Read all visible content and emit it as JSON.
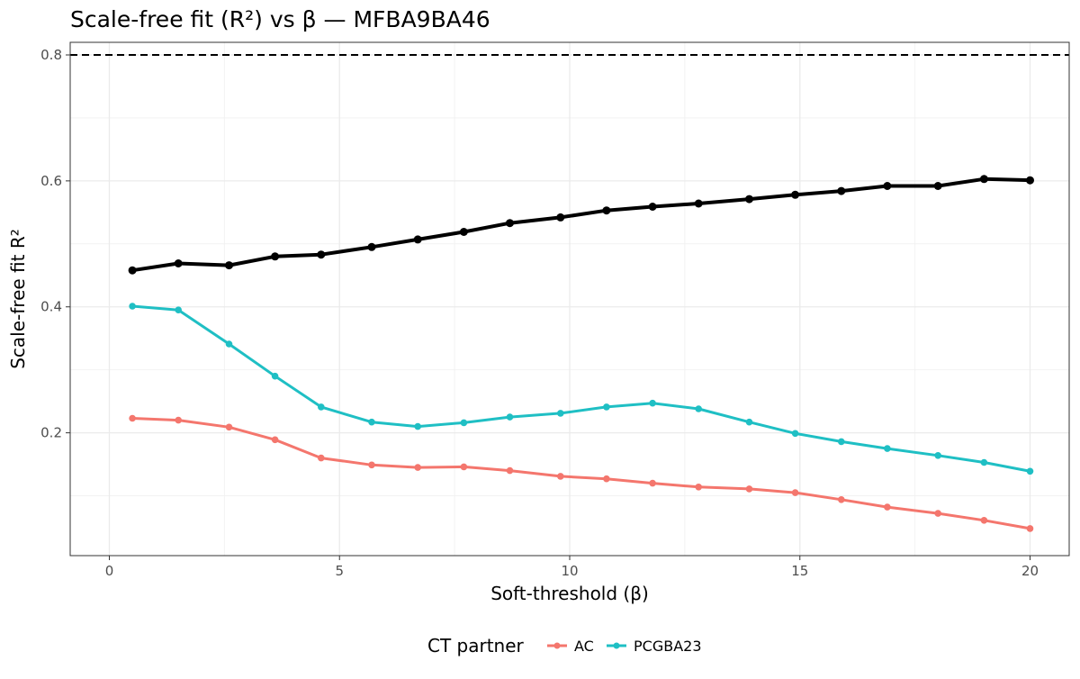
{
  "chart_data": {
    "type": "line",
    "title": "Scale-free fit (R²) vs β — MFBA9BA46",
    "xlabel": "Soft-threshold (β)",
    "ylabel": "Scale-free fit R²",
    "xlim": [
      -0.85,
      20.85
    ],
    "ylim": [
      0.005,
      0.8
    ],
    "x_ticks": [
      0,
      5,
      10,
      15,
      20
    ],
    "x_tick_labels": [
      "0",
      "5",
      "10",
      "15",
      "20"
    ],
    "y_ticks": [
      0.2,
      0.4,
      0.6,
      0.8
    ],
    "y_tick_labels": [
      "0.2",
      "0.4",
      "0.6",
      "0.8"
    ],
    "grid": true,
    "threshold_line": {
      "y": 0.8,
      "style": "dashed",
      "color": "#000000"
    },
    "x": [
      0.5,
      1.5,
      2.6,
      3.6,
      4.6,
      5.7,
      6.7,
      7.7,
      8.7,
      9.8,
      10.8,
      11.8,
      12.8,
      13.9,
      14.9,
      15.9,
      16.9,
      18.0,
      19.0,
      20.0
    ],
    "series": [
      {
        "key": "overall",
        "color": "#000000",
        "values": [
          0.458,
          0.469,
          0.466,
          0.48,
          0.483,
          0.495,
          0.507,
          0.519,
          0.533,
          0.542,
          0.553,
          0.559,
          0.564,
          0.571,
          0.578,
          0.584,
          0.592,
          0.592,
          0.603,
          0.601
        ]
      },
      {
        "key": "pcgba23",
        "name": "PCGBA23",
        "color": "#1FBFC4",
        "values": [
          0.401,
          0.395,
          0.341,
          0.29,
          0.241,
          0.217,
          0.21,
          0.216,
          0.225,
          0.231,
          0.241,
          0.247,
          0.238,
          0.217,
          0.199,
          0.186,
          0.175,
          0.164,
          0.153,
          0.139
        ]
      },
      {
        "key": "ac",
        "name": "AC",
        "color": "#F4766D",
        "values": [
          0.223,
          0.22,
          0.209,
          0.189,
          0.16,
          0.149,
          0.145,
          0.146,
          0.14,
          0.131,
          0.127,
          0.12,
          0.114,
          0.111,
          0.105,
          0.094,
          0.082,
          0.072,
          0.061,
          0.048
        ]
      }
    ],
    "legend": {
      "title": "CT partner",
      "position": "bottom",
      "entries": [
        {
          "label": "AC",
          "color": "#F4766D"
        },
        {
          "label": "PCGBA23",
          "color": "#1FBFC4"
        }
      ]
    }
  }
}
